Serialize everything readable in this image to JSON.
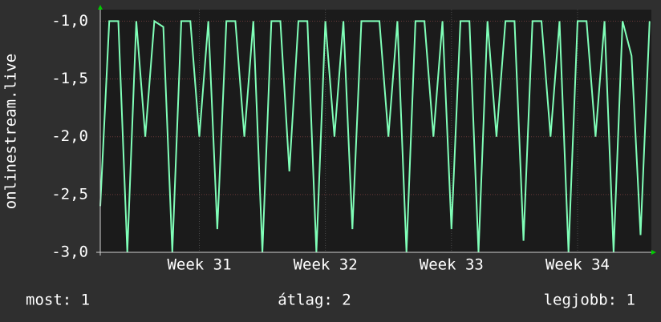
{
  "chart_data": {
    "type": "line",
    "y_label": "onlinestream.live",
    "x": [
      0,
      0.5,
      1,
      1.5,
      2,
      2.5,
      3,
      3.5,
      4,
      4.5,
      5,
      5.5,
      6,
      6.5,
      7,
      7.5,
      8,
      8.5,
      9,
      9.5,
      10,
      10.5,
      11,
      11.5,
      12,
      12.5,
      13,
      13.5,
      14,
      14.5,
      15,
      15.5,
      16,
      16.5,
      17,
      17.5,
      18,
      18.5,
      19,
      19.5,
      20,
      20.5,
      21,
      21.5,
      22,
      22.5,
      23,
      23.5,
      24,
      24.5,
      25,
      25.5,
      26,
      26.5,
      27,
      27.5,
      28,
      28.5,
      29,
      29.5,
      30,
      30.5
    ],
    "values": [
      -2.6,
      -1,
      -1,
      -3,
      -1,
      -2,
      -1,
      -1.05,
      -3,
      -1,
      -1,
      -2,
      -1,
      -2.8,
      -1,
      -1,
      -2,
      -1,
      -3,
      -1,
      -1,
      -2.3,
      -1,
      -1,
      -3,
      -1,
      -2,
      -1,
      -2.8,
      -1,
      -1,
      -1,
      -2,
      -1,
      -3,
      -1,
      -1,
      -2,
      -1,
      -2.8,
      -1,
      -1,
      -3,
      -1,
      -2,
      -1,
      -1,
      -2.9,
      -1,
      -1,
      -2,
      -1,
      -3,
      -1,
      -1,
      -2,
      -1,
      -3,
      -1,
      -1.3,
      -2.85,
      -1
    ],
    "color": "#80ffb8",
    "xlim": [
      0,
      30.6
    ],
    "xticks": [
      {
        "value": 5.5,
        "label": "Week 31"
      },
      {
        "value": 12.5,
        "label": "Week 32"
      },
      {
        "value": 19.5,
        "label": "Week 33"
      },
      {
        "value": 26.5,
        "label": "Week 34"
      }
    ],
    "ylim": [
      -3,
      -0.9
    ],
    "yticks": [
      {
        "value": -3,
        "label": "-3,0"
      },
      {
        "value": -2.5,
        "label": "-2,5"
      },
      {
        "value": -2,
        "label": "-2,0"
      },
      {
        "value": -1.5,
        "label": "-1,5"
      },
      {
        "value": -1,
        "label": "-1,0"
      }
    ],
    "grid": true,
    "legend_stats": [
      "most: 1",
      "átlag: 2",
      "legjobb: 1"
    ]
  }
}
